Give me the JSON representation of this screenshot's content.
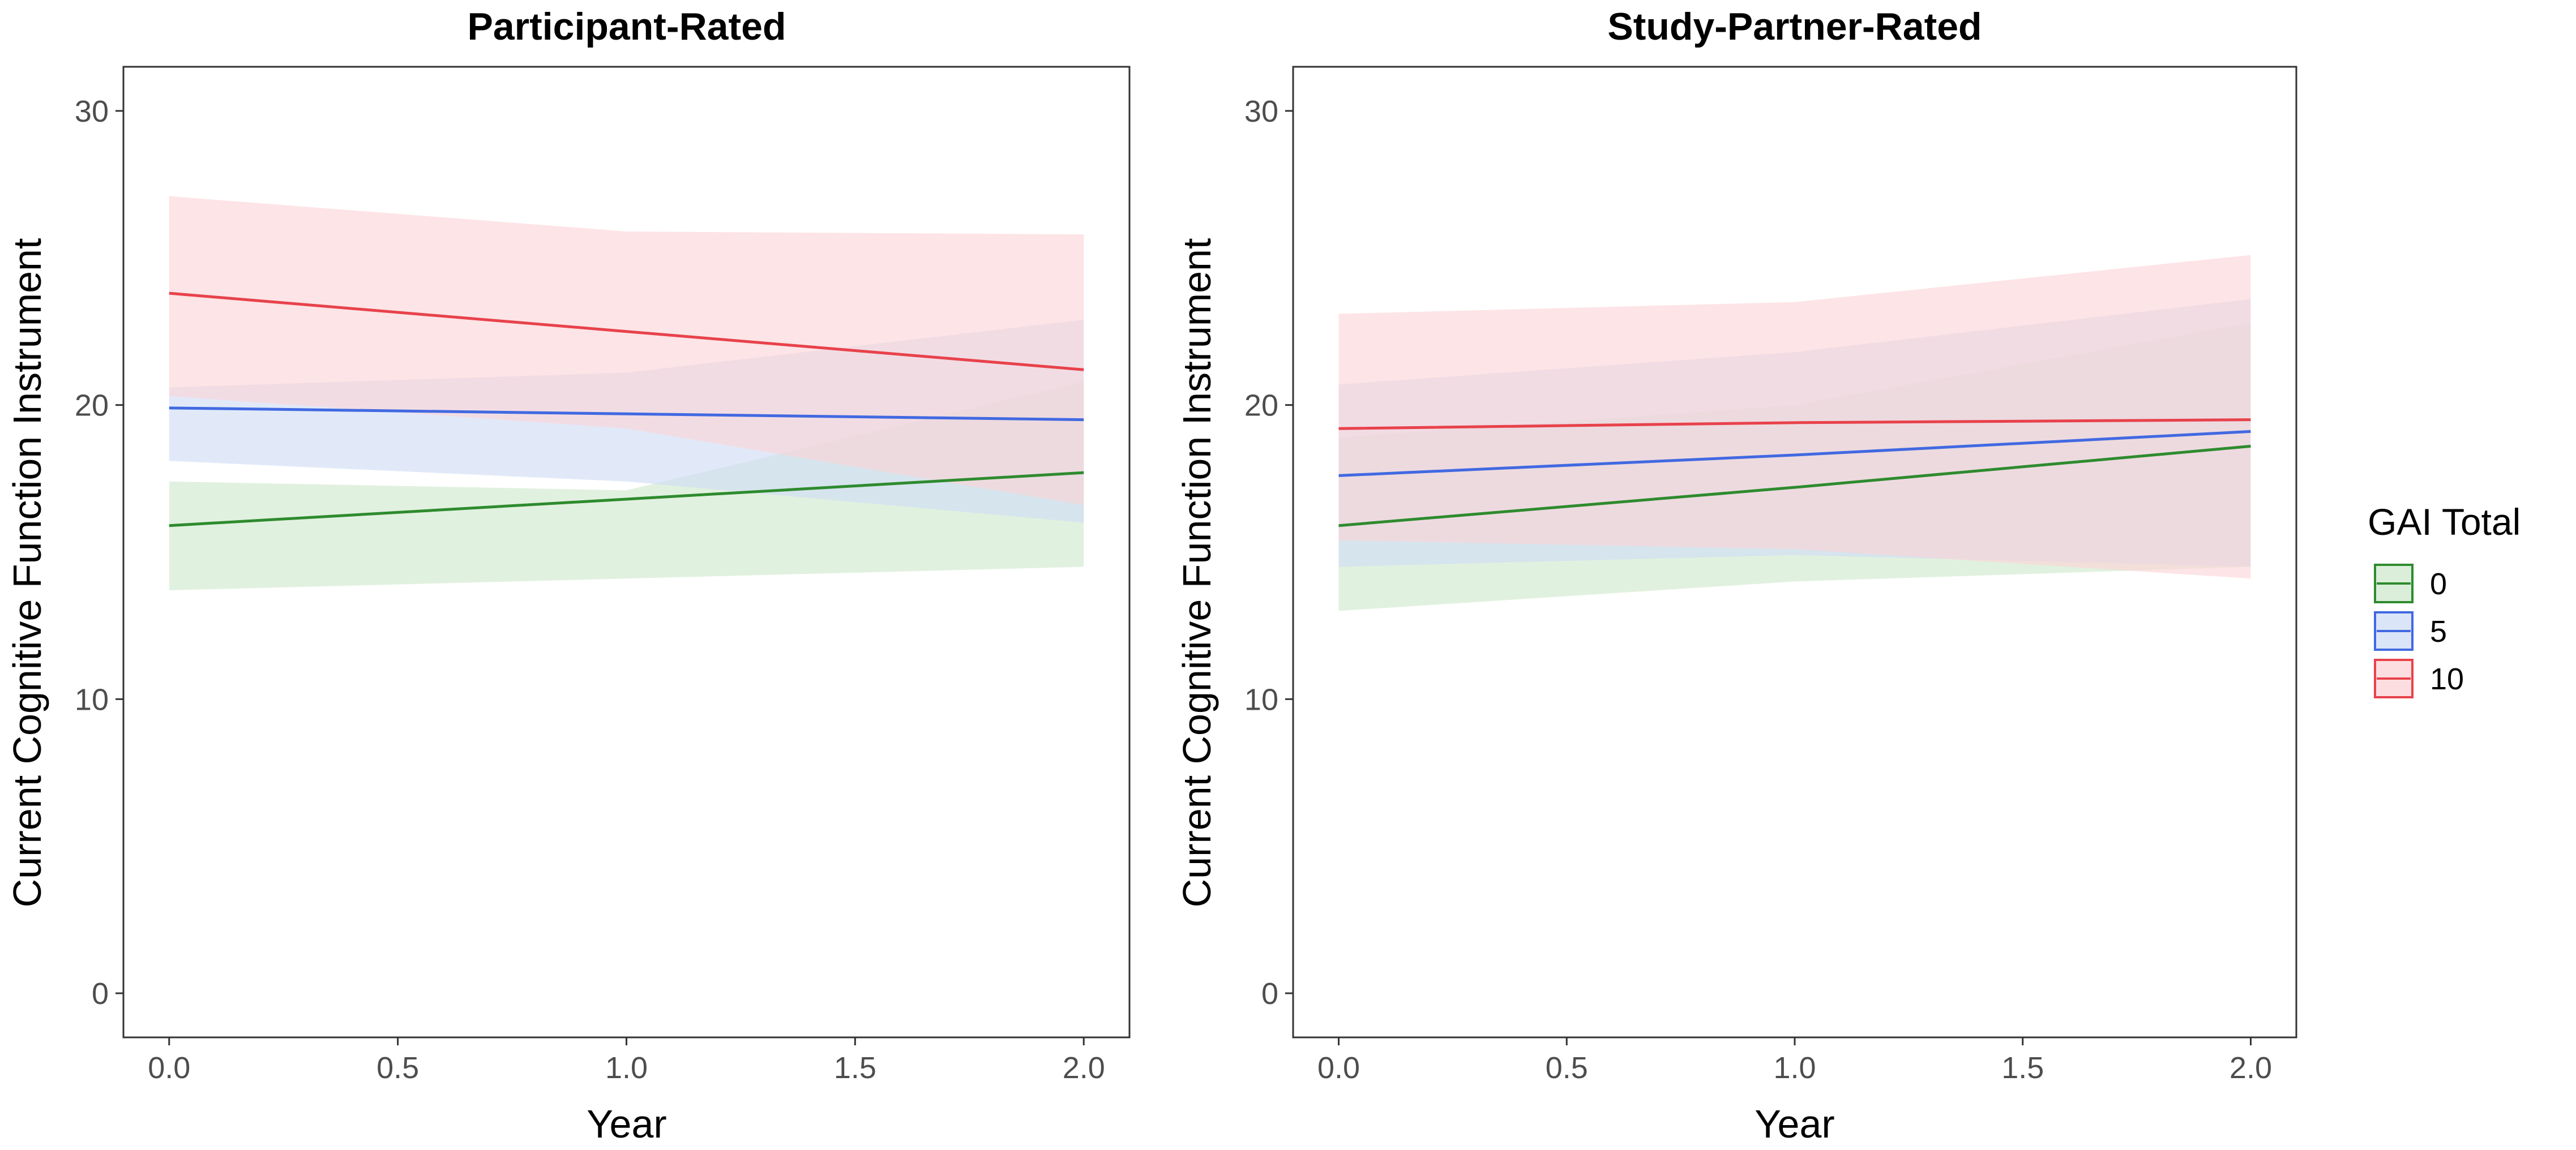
{
  "chart_data": [
    {
      "type": "line",
      "title": "Participant-Rated",
      "xlabel": "Year",
      "ylabel": "Current Cognitive Function Instrument",
      "xlim": [
        -0.1,
        2.1
      ],
      "ylim": [
        -1.5,
        31.5
      ],
      "x_ticks": [
        0.0,
        0.5,
        1.0,
        1.5,
        2.0
      ],
      "x_tick_labels": [
        "0.0",
        "0.5",
        "1.0",
        "1.5",
        "2.0"
      ],
      "y_ticks": [
        0,
        10,
        20,
        30
      ],
      "y_tick_labels": [
        "0",
        "10",
        "20",
        "30"
      ],
      "grid": false,
      "x": [
        0.0,
        1.0,
        2.0
      ],
      "series": [
        {
          "name": "0",
          "color": "#2e8b2e",
          "fill": "#cfe8cc",
          "values": [
            15.9,
            16.8,
            17.7
          ],
          "lower": [
            13.7,
            14.1,
            14.5
          ],
          "upper": [
            17.4,
            17.1,
            20.8
          ]
        },
        {
          "name": "5",
          "color": "#4169e1",
          "fill": "#cfdcf6",
          "values": [
            19.9,
            19.7,
            19.5
          ],
          "lower": [
            18.1,
            17.4,
            16.0
          ],
          "upper": [
            20.6,
            21.1,
            22.9
          ]
        },
        {
          "name": "10",
          "color": "#e8424b",
          "fill": "#fcd3d6",
          "values": [
            23.8,
            22.5,
            21.2
          ],
          "lower": [
            20.3,
            19.2,
            16.6
          ],
          "upper": [
            27.1,
            25.9,
            25.8
          ]
        }
      ]
    },
    {
      "type": "line",
      "title": "Study-Partner-Rated",
      "xlabel": "Year",
      "ylabel": "Current Cognitive Function Instrument",
      "xlim": [
        -0.1,
        2.1
      ],
      "ylim": [
        -1.5,
        31.5
      ],
      "x_ticks": [
        0.0,
        0.5,
        1.0,
        1.5,
        2.0
      ],
      "x_tick_labels": [
        "0.0",
        "0.5",
        "1.0",
        "1.5",
        "2.0"
      ],
      "y_ticks": [
        0,
        10,
        20,
        30
      ],
      "y_tick_labels": [
        "0",
        "10",
        "20",
        "30"
      ],
      "grid": false,
      "x": [
        0.0,
        1.0,
        2.0
      ],
      "series": [
        {
          "name": "0",
          "color": "#2e8b2e",
          "fill": "#cfe8cc",
          "values": [
            15.9,
            17.2,
            18.6
          ],
          "lower": [
            13.0,
            14.0,
            14.5
          ],
          "upper": [
            18.9,
            20.0,
            22.8
          ]
        },
        {
          "name": "5",
          "color": "#4169e1",
          "fill": "#cfdcf6",
          "values": [
            17.6,
            18.3,
            19.1
          ],
          "lower": [
            14.5,
            14.9,
            14.5
          ],
          "upper": [
            20.7,
            21.8,
            23.6
          ]
        },
        {
          "name": "10",
          "color": "#e8424b",
          "fill": "#fcd3d6",
          "values": [
            19.2,
            19.4,
            19.5
          ],
          "lower": [
            15.4,
            15.1,
            14.1
          ],
          "upper": [
            23.1,
            23.5,
            25.1
          ]
        }
      ]
    }
  ],
  "legend": {
    "title": "GAI Total",
    "placement": "right",
    "items": [
      {
        "label": "0",
        "color": "#2e8b2e",
        "fill": "#cfe8cc"
      },
      {
        "label": "5",
        "color": "#4169e1",
        "fill": "#cfdcf6"
      },
      {
        "label": "10",
        "color": "#e8424b",
        "fill": "#fcd3d6"
      }
    ]
  }
}
